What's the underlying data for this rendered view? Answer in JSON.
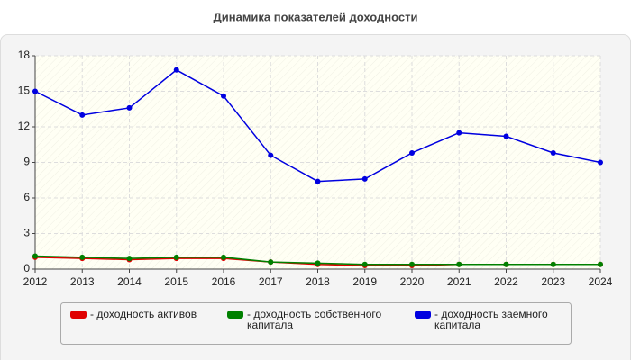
{
  "chart_data": {
    "type": "line",
    "title": "Динамика показателей доходности",
    "x": [
      2012,
      2013,
      2014,
      2015,
      2016,
      2017,
      2018,
      2019,
      2020,
      2021,
      2022,
      2023,
      2024
    ],
    "xlim": [
      2012,
      2024
    ],
    "xticks": [
      2012,
      2013,
      2014,
      2015,
      2016,
      2017,
      2018,
      2019,
      2020,
      2021,
      2022,
      2023,
      2024
    ],
    "ylim": [
      0,
      18
    ],
    "yticks": [
      0,
      3,
      6,
      9,
      12,
      15,
      18
    ],
    "grid": true,
    "series": [
      {
        "name": "- доходность активов",
        "color": "#e00000",
        "values": [
          1.0,
          0.9,
          0.8,
          0.9,
          0.9,
          0.6,
          0.4,
          0.3,
          0.3,
          0.4,
          0.4,
          0.4,
          0.4
        ]
      },
      {
        "name": "- доходность собственного капитала",
        "color": "#008000",
        "values": [
          1.1,
          1.0,
          0.9,
          1.0,
          1.0,
          0.6,
          0.5,
          0.4,
          0.4,
          0.4,
          0.4,
          0.4,
          0.4
        ]
      },
      {
        "name": "- доходность заемного капитала",
        "color": "#0000e0",
        "values": [
          15.0,
          13.0,
          13.6,
          16.8,
          14.6,
          9.6,
          7.4,
          7.6,
          9.8,
          11.5,
          11.2,
          9.8,
          9.0
        ]
      }
    ]
  }
}
